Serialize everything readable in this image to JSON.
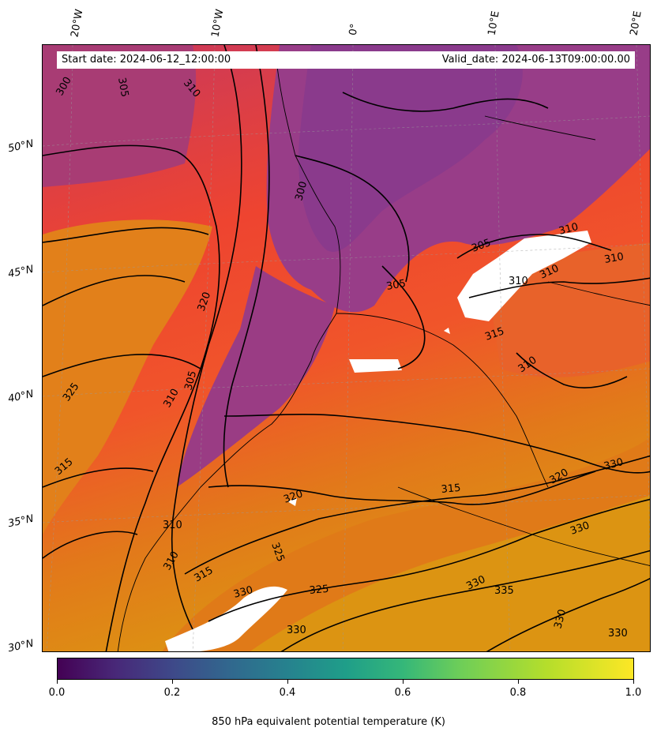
{
  "header": {
    "start_date": "Start date: 2024-06-12_12:00:00",
    "valid_date": "Valid_date: 2024-06-13T09:00:00.00"
  },
  "axes": {
    "lon_labels": [
      "20°W",
      "10°W",
      "0°",
      "10°E",
      "20°E"
    ],
    "lat_labels": [
      "50°N",
      "45°N",
      "40°N",
      "35°N",
      "30°N"
    ]
  },
  "contour_labels": [
    "300",
    "305",
    "310",
    "300",
    "305",
    "310",
    "305",
    "310",
    "310",
    "310",
    "320",
    "315",
    "310",
    "310",
    "305",
    "325",
    "315",
    "310",
    "310",
    "315",
    "320",
    "325",
    "330",
    "325",
    "330",
    "335",
    "330",
    "330",
    "330",
    "320",
    "330",
    "315"
  ],
  "colorbar": {
    "ticks": [
      "0.0",
      "0.2",
      "0.4",
      "0.6",
      "0.8",
      "1.0"
    ],
    "label": "850 hPa equivalent potential temperature (K)",
    "colors": [
      "#440154",
      "#3e4989",
      "#26828e",
      "#35b779",
      "#b5de2b",
      "#fde725"
    ]
  },
  "map_colors": {
    "cold": "#8b3a8f",
    "mid": "#c23a58",
    "warm": "#f24a2a",
    "hot": "#e07b10",
    "hottest": "#dc9510",
    "missing": "#ffffff"
  }
}
